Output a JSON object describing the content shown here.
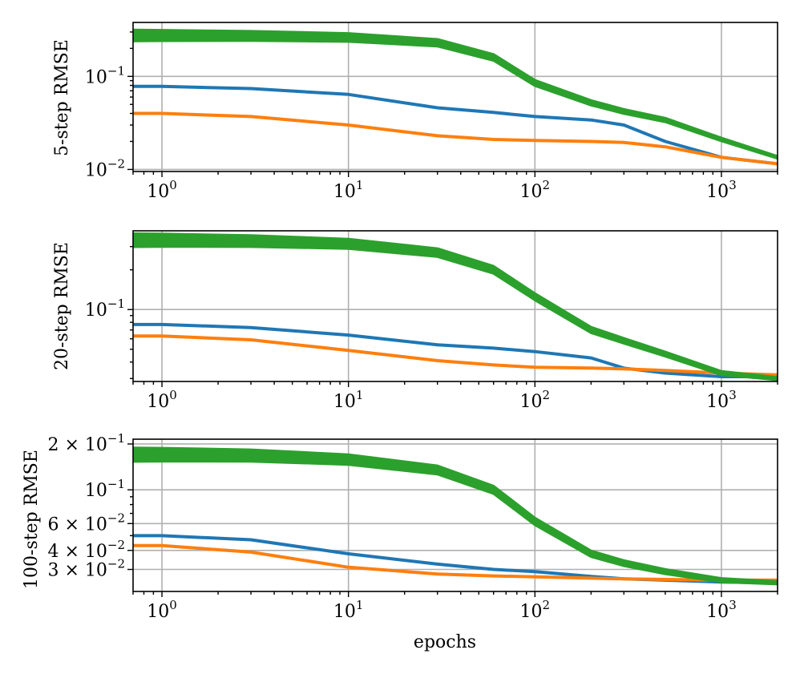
{
  "chart_data": [
    {
      "type": "line",
      "title": "",
      "ylabel": "5-step RMSE",
      "xlabel": "",
      "xscale": "log",
      "yscale": "log",
      "xlim": [
        0.7,
        2000
      ],
      "ylim": [
        0.0095,
        0.38
      ],
      "grid": true,
      "xticks": [
        {
          "value": 1,
          "base": "10",
          "exp": "0"
        },
        {
          "value": 10,
          "base": "10",
          "exp": "1"
        },
        {
          "value": 100,
          "base": "10",
          "exp": "2"
        },
        {
          "value": 1000,
          "base": "10",
          "exp": "3"
        }
      ],
      "yticks": [
        {
          "value": 0.1,
          "base": "10",
          "exp": "−1"
        },
        {
          "value": 0.01,
          "base": "10",
          "exp": "−2"
        }
      ],
      "series": [
        {
          "name": "blue",
          "color": "#1f77b4",
          "copies": 1,
          "spread": 0.004,
          "x": [
            0.7,
            1,
            3,
            10,
            30,
            60,
            100,
            200,
            300,
            500,
            1000,
            2000
          ],
          "y": [
            0.078,
            0.078,
            0.074,
            0.064,
            0.046,
            0.041,
            0.037,
            0.034,
            0.03,
            0.02,
            0.0135,
            0.0115
          ]
        },
        {
          "name": "orange",
          "color": "#ff7f0e",
          "copies": 1,
          "spread": 0.004,
          "x": [
            0.7,
            1,
            3,
            10,
            30,
            60,
            100,
            200,
            300,
            500,
            1000,
            2000
          ],
          "y": [
            0.04,
            0.04,
            0.037,
            0.03,
            0.023,
            0.021,
            0.0205,
            0.02,
            0.0195,
            0.0175,
            0.0135,
            0.0115
          ]
        },
        {
          "name": "green",
          "color": "#2ca02c",
          "copies": 8,
          "spread": 0.06,
          "x": [
            0.7,
            1,
            3,
            10,
            30,
            60,
            100,
            200,
            300,
            500,
            1000,
            2000
          ],
          "y": [
            0.275,
            0.275,
            0.272,
            0.262,
            0.23,
            0.16,
            0.085,
            0.052,
            0.042,
            0.034,
            0.021,
            0.0135
          ]
        }
      ]
    },
    {
      "type": "line",
      "title": "",
      "ylabel": "20-step RMSE",
      "xlabel": "",
      "xscale": "log",
      "yscale": "log",
      "xlim": [
        0.7,
        2000
      ],
      "ylim": [
        0.0285,
        0.395
      ],
      "grid": true,
      "xticks": [
        {
          "value": 1,
          "base": "10",
          "exp": "0"
        },
        {
          "value": 10,
          "base": "10",
          "exp": "1"
        },
        {
          "value": 100,
          "base": "10",
          "exp": "2"
        },
        {
          "value": 1000,
          "base": "10",
          "exp": "3"
        }
      ],
      "yticks": [
        {
          "value": 0.1,
          "base": "10",
          "exp": "−1"
        }
      ],
      "series": [
        {
          "name": "blue",
          "color": "#1f77b4",
          "copies": 1,
          "spread": 0.0,
          "x": [
            0.7,
            1,
            3,
            10,
            30,
            60,
            100,
            200,
            300,
            500,
            1000,
            2000
          ],
          "y": [
            0.077,
            0.077,
            0.073,
            0.064,
            0.054,
            0.051,
            0.048,
            0.043,
            0.036,
            0.033,
            0.031,
            0.031
          ]
        },
        {
          "name": "orange",
          "color": "#ff7f0e",
          "copies": 1,
          "spread": 0.0,
          "x": [
            0.7,
            1,
            3,
            10,
            30,
            60,
            100,
            200,
            300,
            500,
            1000,
            2000
          ],
          "y": [
            0.063,
            0.063,
            0.059,
            0.049,
            0.041,
            0.038,
            0.0365,
            0.036,
            0.0355,
            0.0345,
            0.033,
            0.032
          ]
        },
        {
          "name": "green",
          "color": "#2ca02c",
          "copies": 9,
          "spread": 0.05,
          "x": [
            0.7,
            1,
            3,
            10,
            30,
            60,
            100,
            200,
            300,
            500,
            1000,
            2000
          ],
          "y": [
            0.335,
            0.335,
            0.33,
            0.315,
            0.27,
            0.2,
            0.125,
            0.07,
            0.058,
            0.046,
            0.033,
            0.03
          ]
        }
      ]
    },
    {
      "type": "line",
      "title": "",
      "ylabel": "100-step RMSE",
      "xlabel": "epochs",
      "xscale": "log",
      "yscale": "log",
      "xlim": [
        0.7,
        2000
      ],
      "ylim": [
        0.0215,
        0.215
      ],
      "grid": true,
      "xticks": [
        {
          "value": 1,
          "base": "10",
          "exp": "0"
        },
        {
          "value": 10,
          "base": "10",
          "exp": "1"
        },
        {
          "value": 100,
          "base": "10",
          "exp": "2"
        },
        {
          "value": 1000,
          "base": "10",
          "exp": "3"
        }
      ],
      "yticks": [
        {
          "value": 0.2,
          "base": "2 × 10",
          "exp": "−1"
        },
        {
          "value": 0.1,
          "base": "10",
          "exp": "−1"
        },
        {
          "value": 0.06,
          "base": "6 × 10",
          "exp": "−2"
        },
        {
          "value": 0.04,
          "base": "4 × 10",
          "exp": "−2"
        },
        {
          "value": 0.03,
          "base": "3 × 10",
          "exp": "−2"
        }
      ],
      "series": [
        {
          "name": "blue",
          "color": "#1f77b4",
          "copies": 1,
          "spread": 0.0,
          "x": [
            0.7,
            1,
            3,
            10,
            30,
            60,
            100,
            200,
            300,
            500,
            1000,
            2000
          ],
          "y": [
            0.05,
            0.05,
            0.047,
            0.038,
            0.0325,
            0.03,
            0.029,
            0.027,
            0.026,
            0.0255,
            0.0248,
            0.0245
          ]
        },
        {
          "name": "orange",
          "color": "#ff7f0e",
          "copies": 1,
          "spread": 0.0,
          "x": [
            0.7,
            1,
            3,
            10,
            30,
            60,
            100,
            200,
            300,
            500,
            1000,
            2000
          ],
          "y": [
            0.043,
            0.043,
            0.039,
            0.031,
            0.028,
            0.0272,
            0.0268,
            0.0263,
            0.026,
            0.0258,
            0.0255,
            0.0255
          ]
        },
        {
          "name": "green",
          "color": "#2ca02c",
          "copies": 9,
          "spread": 0.045,
          "x": [
            0.7,
            1,
            3,
            10,
            30,
            60,
            100,
            200,
            300,
            500,
            1000,
            2000
          ],
          "y": [
            0.17,
            0.17,
            0.168,
            0.158,
            0.135,
            0.1,
            0.062,
            0.038,
            0.033,
            0.029,
            0.0255,
            0.0245
          ]
        }
      ]
    }
  ]
}
